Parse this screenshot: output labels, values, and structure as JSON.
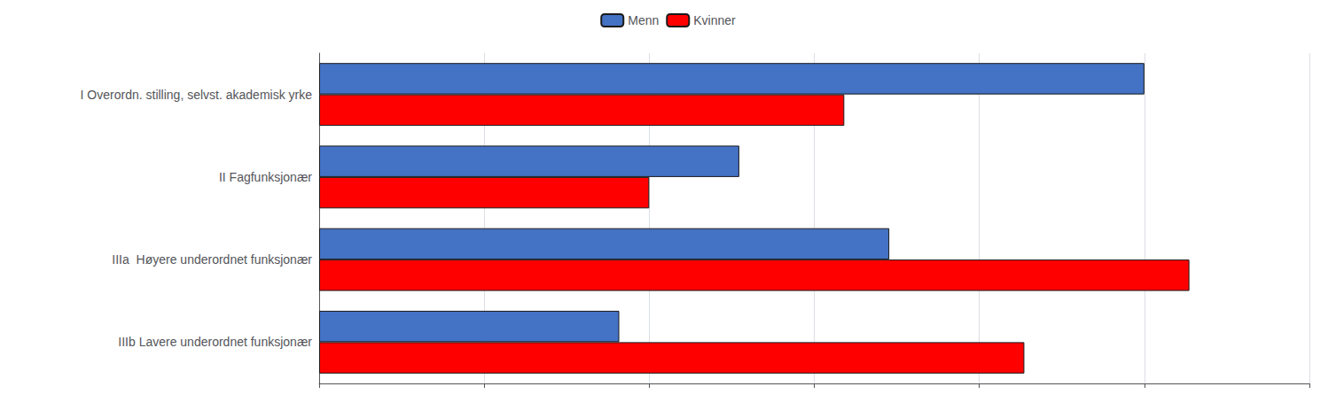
{
  "chart_data": {
    "type": "bar",
    "orientation": "horizontal",
    "categories": [
      "IIIb Lavere underordnet funksjonær",
      "IIIa  Høyere underordnet funksjonær",
      "II Fagfunksjonær",
      "I Overordn. stilling, selvst. akademisk yrke"
    ],
    "series": [
      {
        "name": "Menn",
        "color": "#4472C4",
        "values": [
          20,
          38,
          28,
          55
        ]
      },
      {
        "name": "Kvinner",
        "color": "#FF0000",
        "values": [
          47,
          58,
          22,
          35
        ]
      }
    ],
    "xlim": [
      0,
      66
    ],
    "xticks": [
      0,
      11,
      22,
      33,
      44,
      55,
      66
    ],
    "grid": true,
    "legend": "top",
    "tick_labels": "y"
  }
}
